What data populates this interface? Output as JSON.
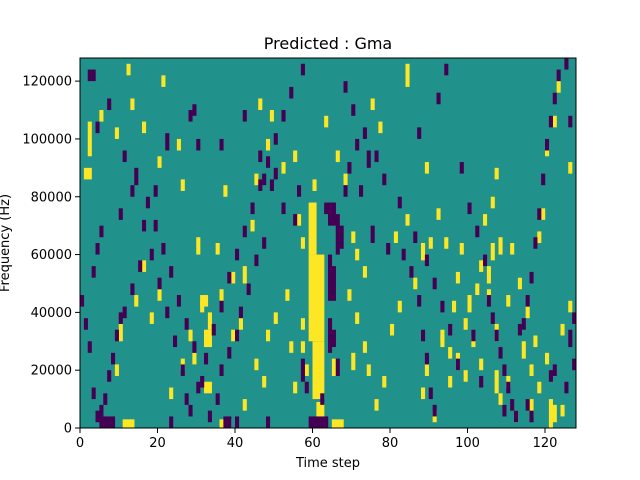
{
  "chart_data": {
    "type": "heatmap",
    "title": "Predicted : Gma",
    "xlabel": "Time step",
    "ylabel": "Frequency (Hz)",
    "xlim": [
      0,
      128
    ],
    "ylim": [
      0,
      128000
    ],
    "x_ticks": [
      0,
      20,
      40,
      60,
      80,
      100,
      120
    ],
    "y_ticks": [
      0,
      20000,
      40000,
      60000,
      80000,
      100000,
      120000
    ],
    "y_tick_labels": [
      "0",
      "20000",
      "40000",
      "60000",
      "80000",
      "100000",
      "120000"
    ],
    "x_tick_labels": [
      "0",
      "20",
      "40",
      "60",
      "80",
      "100",
      "120"
    ],
    "colormap": "viridis",
    "colors": {
      "low": "#440154",
      "mid": "#21918c",
      "high": "#fde725"
    },
    "background_value": 0,
    "bins_x": 128,
    "bins_y": 128,
    "cell_values": [
      -1,
      0,
      1
    ],
    "cells_high": [
      [
        61,
        0,
        9
      ],
      [
        62,
        0,
        9
      ],
      [
        60,
        10,
        30
      ],
      [
        61,
        10,
        30
      ],
      [
        62,
        10,
        30
      ],
      [
        59,
        30,
        60
      ],
      [
        60,
        30,
        60
      ],
      [
        61,
        30,
        60
      ],
      [
        62,
        30,
        60
      ],
      [
        59,
        60,
        78
      ],
      [
        60,
        60,
        78
      ],
      [
        11,
        0,
        3
      ],
      [
        12,
        0,
        3
      ],
      [
        13,
        0,
        3
      ],
      [
        36,
        0,
        3
      ],
      [
        37,
        0,
        3
      ],
      [
        38,
        0,
        3
      ],
      [
        65,
        0,
        3
      ],
      [
        66,
        0,
        3
      ],
      [
        67,
        0,
        3
      ],
      [
        32,
        12,
        16
      ],
      [
        33,
        12,
        16
      ],
      [
        32,
        28,
        34
      ],
      [
        33,
        28,
        34
      ],
      [
        31,
        42,
        46
      ],
      [
        32,
        42,
        46
      ],
      [
        33,
        34,
        40
      ],
      [
        65,
        18,
        24
      ],
      [
        70,
        20,
        26
      ],
      [
        107,
        12,
        20
      ],
      [
        114,
        24,
        30
      ],
      [
        116,
        4,
        10
      ],
      [
        121,
        0,
        10
      ],
      [
        122,
        2,
        8
      ],
      [
        124,
        4,
        8
      ],
      [
        105,
        50,
        56
      ],
      [
        106,
        58,
        64
      ],
      [
        108,
        60,
        66
      ],
      [
        110,
        42,
        46
      ],
      [
        107,
        30,
        36
      ],
      [
        103,
        20,
        24
      ],
      [
        89,
        18,
        22
      ],
      [
        93,
        28,
        32
      ],
      [
        95,
        14,
        18
      ],
      [
        100,
        40,
        46
      ],
      [
        102,
        46,
        50
      ],
      [
        98,
        60,
        64
      ],
      [
        90,
        62,
        66
      ],
      [
        88,
        58,
        64
      ],
      [
        84,
        70,
        74
      ],
      [
        81,
        64,
        68
      ],
      [
        73,
        52,
        56
      ],
      [
        71,
        58,
        62
      ],
      [
        70,
        64,
        68
      ],
      [
        68,
        84,
        88
      ],
      [
        66,
        92,
        96
      ],
      [
        1,
        86,
        90
      ],
      [
        2,
        86,
        90
      ],
      [
        2,
        94,
        106
      ],
      [
        5,
        106,
        110
      ],
      [
        9,
        100,
        104
      ],
      [
        12,
        122,
        126
      ],
      [
        13,
        110,
        114
      ],
      [
        16,
        102,
        106
      ],
      [
        20,
        90,
        94
      ],
      [
        21,
        118,
        122
      ],
      [
        25,
        96,
        100
      ],
      [
        26,
        82,
        86
      ],
      [
        30,
        60,
        66
      ],
      [
        31,
        40,
        44
      ],
      [
        36,
        44,
        48
      ],
      [
        39,
        30,
        34
      ],
      [
        41,
        34,
        38
      ],
      [
        42,
        50,
        56
      ],
      [
        44,
        68,
        72
      ],
      [
        45,
        84,
        88
      ],
      [
        46,
        110,
        114
      ],
      [
        49,
        106,
        110
      ],
      [
        48,
        96,
        100
      ],
      [
        52,
        88,
        92
      ],
      [
        55,
        92,
        96
      ],
      [
        57,
        62,
        66
      ],
      [
        54,
        26,
        30
      ],
      [
        58,
        18,
        22
      ],
      [
        57,
        34,
        38
      ],
      [
        60,
        82,
        86
      ],
      [
        63,
        104,
        108
      ],
      [
        75,
        110,
        114
      ],
      [
        77,
        102,
        106
      ],
      [
        84,
        118,
        126
      ],
      [
        89,
        88,
        92
      ],
      [
        92,
        72,
        76
      ],
      [
        94,
        62,
        66
      ],
      [
        96,
        40,
        44
      ],
      [
        97,
        20,
        26
      ],
      [
        99,
        16,
        20
      ],
      [
        104,
        70,
        74
      ],
      [
        106,
        76,
        80
      ],
      [
        107,
        86,
        90
      ],
      [
        111,
        60,
        64
      ],
      [
        113,
        48,
        52
      ],
      [
        115,
        38,
        42
      ],
      [
        117,
        28,
        32
      ],
      [
        118,
        64,
        68
      ],
      [
        119,
        72,
        76
      ],
      [
        120,
        94,
        98
      ],
      [
        122,
        104,
        108
      ],
      [
        123,
        116,
        120
      ],
      [
        126,
        88,
        92
      ],
      [
        9,
        18,
        22
      ],
      [
        10,
        30,
        36
      ],
      [
        14,
        42,
        46
      ],
      [
        16,
        54,
        58
      ],
      [
        18,
        36,
        40
      ],
      [
        20,
        44,
        48
      ],
      [
        23,
        10,
        14
      ],
      [
        26,
        20,
        24
      ],
      [
        28,
        30,
        34
      ],
      [
        29,
        22,
        26
      ],
      [
        35,
        60,
        64
      ],
      [
        37,
        80,
        84
      ],
      [
        39,
        50,
        54
      ],
      [
        42,
        6,
        10
      ],
      [
        45,
        20,
        24
      ],
      [
        47,
        14,
        18
      ],
      [
        48,
        30,
        34
      ],
      [
        50,
        36,
        40
      ],
      [
        53,
        44,
        48
      ],
      [
        55,
        12,
        16
      ],
      [
        56,
        70,
        74
      ],
      [
        57,
        26,
        30
      ],
      [
        69,
        44,
        48
      ],
      [
        71,
        36,
        40
      ],
      [
        73,
        26,
        30
      ],
      [
        74,
        18,
        22
      ],
      [
        76,
        6,
        10
      ],
      [
        78,
        14,
        18
      ],
      [
        80,
        32,
        36
      ],
      [
        82,
        40,
        44
      ],
      [
        86,
        48,
        52
      ],
      [
        88,
        10,
        14
      ],
      [
        91,
        2,
        6
      ],
      [
        93,
        30,
        34
      ],
      [
        95,
        24,
        28
      ],
      [
        97,
        50,
        54
      ],
      [
        99,
        34,
        38
      ],
      [
        101,
        28,
        32
      ],
      [
        103,
        54,
        58
      ],
      [
        105,
        44,
        48
      ],
      [
        108,
        8,
        12
      ],
      [
        110,
        14,
        18
      ],
      [
        112,
        2,
        6
      ],
      [
        116,
        18,
        22
      ],
      [
        118,
        12,
        16
      ],
      [
        120,
        22,
        26
      ],
      [
        124,
        32,
        36
      ],
      [
        126,
        40,
        44
      ]
    ],
    "cells_low": [
      [
        5,
        0,
        4
      ],
      [
        6,
        0,
        4
      ],
      [
        7,
        0,
        4
      ],
      [
        8,
        0,
        4
      ],
      [
        59,
        0,
        4
      ],
      [
        60,
        0,
        4
      ],
      [
        61,
        0,
        4
      ],
      [
        62,
        0,
        4
      ],
      [
        63,
        0,
        4
      ],
      [
        23,
        0,
        4
      ],
      [
        37,
        0,
        4
      ],
      [
        38,
        0,
        4
      ],
      [
        40,
        0,
        4
      ],
      [
        48,
        0,
        4
      ],
      [
        64,
        70,
        78
      ],
      [
        65,
        70,
        78
      ],
      [
        66,
        60,
        74
      ],
      [
        67,
        62,
        70
      ],
      [
        64,
        44,
        60
      ],
      [
        65,
        44,
        56
      ],
      [
        64,
        26,
        38
      ],
      [
        65,
        28,
        34
      ],
      [
        66,
        18,
        24
      ],
      [
        57,
        16,
        24
      ],
      [
        58,
        12,
        16
      ],
      [
        62,
        8,
        12
      ],
      [
        63,
        74,
        78
      ],
      [
        2,
        120,
        124
      ],
      [
        3,
        120,
        124
      ],
      [
        4,
        102,
        106
      ],
      [
        7,
        110,
        114
      ],
      [
        11,
        92,
        96
      ],
      [
        14,
        84,
        90
      ],
      [
        19,
        80,
        84
      ],
      [
        22,
        96,
        102
      ],
      [
        28,
        106,
        110
      ],
      [
        29,
        108,
        112
      ],
      [
        30,
        96,
        100
      ],
      [
        36,
        96,
        100
      ],
      [
        42,
        106,
        110
      ],
      [
        46,
        92,
        96
      ],
      [
        47,
        84,
        88
      ],
      [
        49,
        82,
        86
      ],
      [
        52,
        74,
        78
      ],
      [
        55,
        70,
        74
      ],
      [
        56,
        80,
        84
      ],
      [
        68,
        116,
        120
      ],
      [
        70,
        108,
        112
      ],
      [
        74,
        90,
        96
      ],
      [
        72,
        80,
        84
      ],
      [
        75,
        64,
        70
      ],
      [
        79,
        60,
        64
      ],
      [
        83,
        58,
        62
      ],
      [
        85,
        52,
        56
      ],
      [
        87,
        42,
        46
      ],
      [
        88,
        30,
        34
      ],
      [
        89,
        22,
        26
      ],
      [
        90,
        10,
        14
      ],
      [
        91,
        4,
        8
      ],
      [
        87,
        100,
        104
      ],
      [
        92,
        112,
        116
      ],
      [
        94,
        122,
        126
      ],
      [
        98,
        88,
        92
      ],
      [
        100,
        74,
        78
      ],
      [
        102,
        66,
        70
      ],
      [
        104,
        56,
        60
      ],
      [
        105,
        42,
        46
      ],
      [
        106,
        36,
        40
      ],
      [
        107,
        30,
        34
      ],
      [
        108,
        24,
        28
      ],
      [
        109,
        18,
        22
      ],
      [
        110,
        12,
        16
      ],
      [
        111,
        6,
        10
      ],
      [
        112,
        2,
        6
      ],
      [
        113,
        32,
        36
      ],
      [
        114,
        34,
        38
      ],
      [
        115,
        42,
        46
      ],
      [
        116,
        50,
        54
      ],
      [
        117,
        62,
        66
      ],
      [
        118,
        72,
        76
      ],
      [
        119,
        84,
        88
      ],
      [
        120,
        96,
        100
      ],
      [
        121,
        104,
        108
      ],
      [
        122,
        112,
        116
      ],
      [
        123,
        120,
        124
      ],
      [
        125,
        124,
        128
      ],
      [
        126,
        104,
        108
      ],
      [
        125,
        12,
        16
      ],
      [
        126,
        28,
        34
      ],
      [
        127,
        20,
        24
      ],
      [
        127,
        36,
        40
      ],
      [
        121,
        16,
        20
      ],
      [
        122,
        18,
        22
      ],
      [
        115,
        6,
        10
      ],
      [
        116,
        2,
        6
      ],
      [
        109,
        4,
        8
      ],
      [
        103,
        14,
        18
      ],
      [
        101,
        30,
        34
      ],
      [
        97,
        20,
        24
      ],
      [
        95,
        32,
        36
      ],
      [
        93,
        40,
        44
      ],
      [
        91,
        48,
        52
      ],
      [
        89,
        56,
        60
      ],
      [
        86,
        64,
        68
      ],
      [
        82,
        76,
        80
      ],
      [
        78,
        84,
        88
      ],
      [
        76,
        92,
        96
      ],
      [
        73,
        100,
        104
      ],
      [
        71,
        96,
        100
      ],
      [
        69,
        88,
        92
      ],
      [
        68,
        80,
        84
      ],
      [
        50,
        86,
        90
      ],
      [
        47,
        62,
        66
      ],
      [
        45,
        56,
        60
      ],
      [
        43,
        46,
        50
      ],
      [
        41,
        38,
        42
      ],
      [
        40,
        30,
        34
      ],
      [
        38,
        24,
        28
      ],
      [
        36,
        18,
        22
      ],
      [
        35,
        8,
        12
      ],
      [
        33,
        2,
        6
      ],
      [
        31,
        14,
        18
      ],
      [
        29,
        26,
        30
      ],
      [
        27,
        34,
        38
      ],
      [
        25,
        42,
        46
      ],
      [
        23,
        52,
        56
      ],
      [
        21,
        60,
        64
      ],
      [
        19,
        68,
        72
      ],
      [
        17,
        76,
        80
      ],
      [
        15,
        54,
        58
      ],
      [
        13,
        46,
        50
      ],
      [
        11,
        38,
        42
      ],
      [
        10,
        36,
        40
      ],
      [
        9,
        30,
        34
      ],
      [
        8,
        22,
        26
      ],
      [
        7,
        16,
        20
      ],
      [
        6,
        8,
        12
      ],
      [
        5,
        4,
        8
      ],
      [
        4,
        2,
        6
      ],
      [
        3,
        10,
        14
      ],
      [
        2,
        26,
        30
      ],
      [
        1,
        34,
        38
      ],
      [
        0,
        42,
        46
      ],
      [
        3,
        52,
        56
      ],
      [
        4,
        60,
        64
      ],
      [
        5,
        66,
        70
      ],
      [
        10,
        72,
        76
      ],
      [
        13,
        80,
        84
      ],
      [
        16,
        68,
        72
      ],
      [
        18,
        58,
        62
      ],
      [
        20,
        48,
        52
      ],
      [
        22,
        38,
        42
      ],
      [
        24,
        28,
        32
      ],
      [
        26,
        18,
        22
      ],
      [
        27,
        8,
        12
      ],
      [
        28,
        4,
        8
      ],
      [
        30,
        12,
        16
      ],
      [
        32,
        22,
        26
      ],
      [
        34,
        32,
        36
      ],
      [
        36,
        40,
        44
      ],
      [
        38,
        50,
        54
      ],
      [
        40,
        58,
        62
      ],
      [
        42,
        66,
        70
      ],
      [
        44,
        74,
        78
      ],
      [
        46,
        82,
        86
      ],
      [
        48,
        90,
        94
      ],
      [
        50,
        98,
        102
      ],
      [
        52,
        106,
        110
      ],
      [
        54,
        114,
        118
      ],
      [
        57,
        122,
        126
      ]
    ]
  }
}
